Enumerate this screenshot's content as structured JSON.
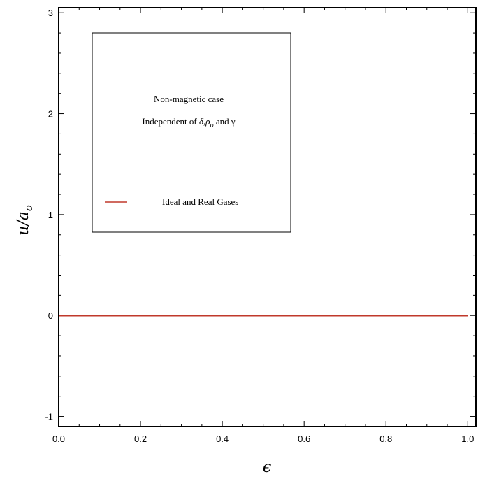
{
  "chart_data": {
    "type": "line",
    "title": "",
    "xlabel": "ϵ",
    "ylabel": "u/a",
    "ylabel_subscript": "o",
    "xlim": [
      0.0,
      1.02
    ],
    "ylim": [
      -1.1,
      3.05
    ],
    "x_ticks": [
      0.0,
      0.2,
      0.4,
      0.6,
      0.8,
      1.0
    ],
    "x_tick_labels": [
      "0.0",
      "0.2",
      "0.4",
      "0.6",
      "0.8",
      "1.0"
    ],
    "y_ticks": [
      -1,
      0,
      1,
      2,
      3
    ],
    "y_tick_labels": [
      "-1",
      "0",
      "1",
      "2",
      "3"
    ],
    "grid": false,
    "legend_position": "upper-left",
    "annotation": {
      "line1": "Non-magnetic case",
      "line2_prefix": "Independent of ",
      "line2_symbols": "δ,ρ",
      "line2_subscript": "o",
      "line2_suffix": " and γ"
    },
    "series": [
      {
        "name": "Ideal and Real Gases",
        "color": "#c0392b",
        "x": [
          0.0,
          1.0
        ],
        "y": [
          0.0,
          0.0
        ]
      }
    ]
  }
}
